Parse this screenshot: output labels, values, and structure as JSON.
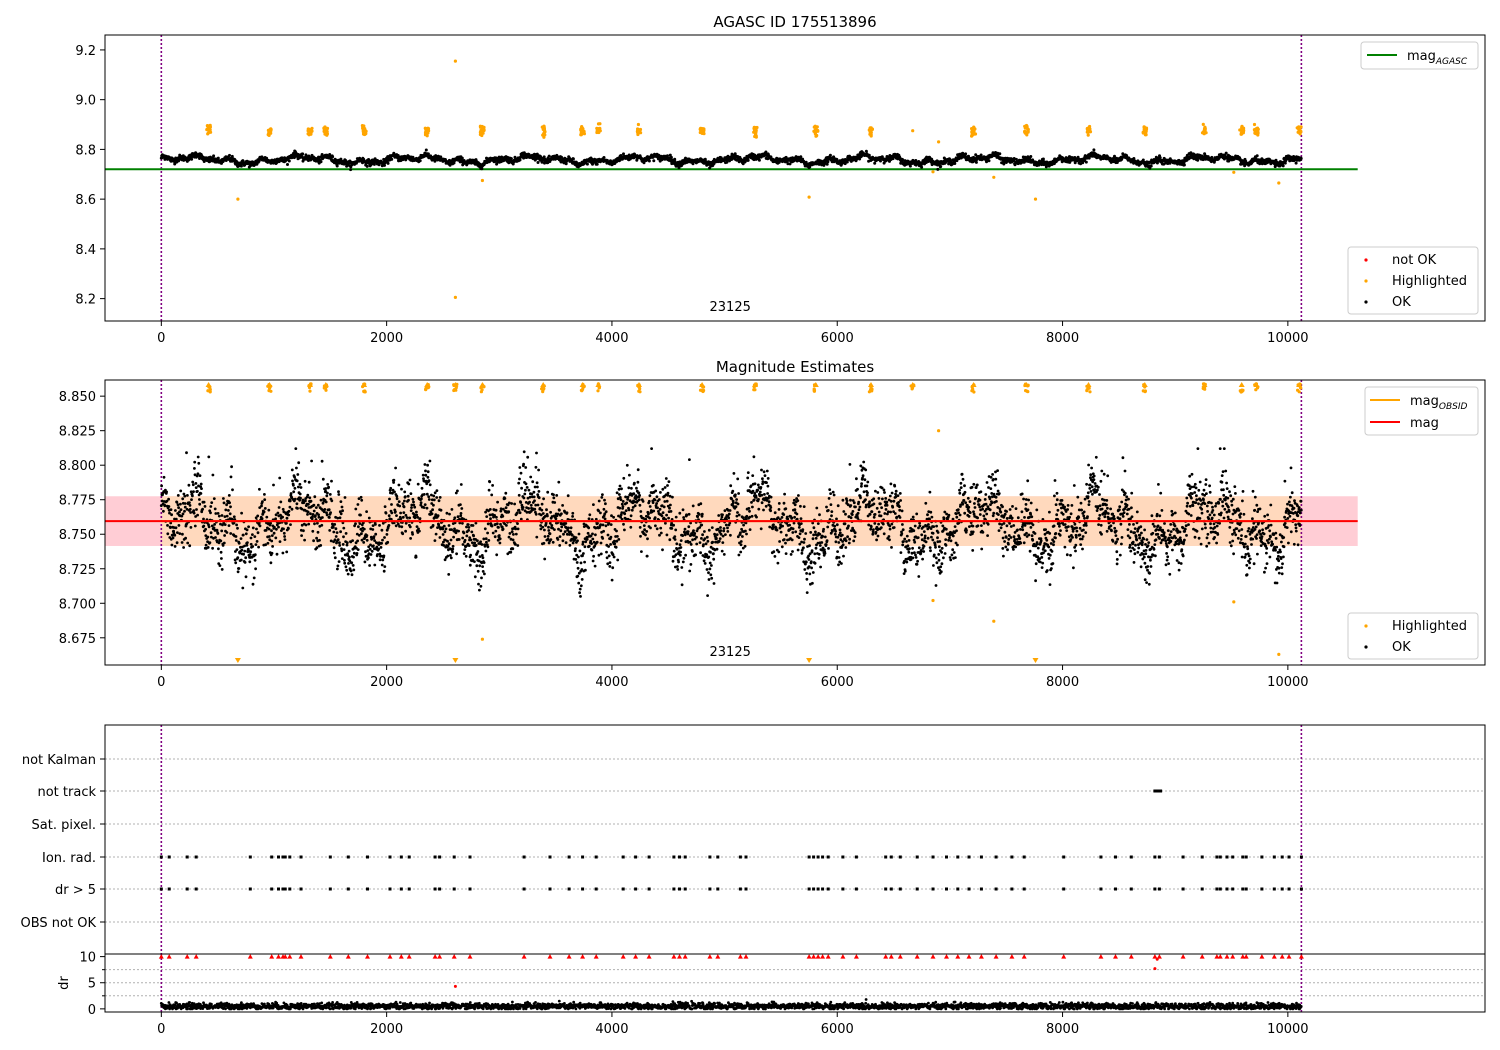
{
  "figure": {
    "background": "#ffffff"
  },
  "chart_data": [
    {
      "type": "scatter",
      "title": "AGASC ID 175513896",
      "xlabel": "",
      "ylabel": "",
      "xlim": [
        -500,
        11750
      ],
      "ylim": [
        8.11,
        9.26
      ],
      "xticks": [
        0,
        2000,
        4000,
        6000,
        8000,
        10000
      ],
      "yticks": [
        8.2,
        8.4,
        8.6,
        8.8,
        9.0,
        9.2
      ],
      "ytick_labels": [
        "8.2",
        "8.4",
        "8.6",
        "8.8",
        "9.0",
        "9.2"
      ],
      "annotation": "23125",
      "annotation_x": 5050,
      "vlines": [
        0,
        10120
      ],
      "vline_color": "#800080",
      "reference_lines": [
        {
          "name": "mag_AGASC",
          "label_main": "mag",
          "label_sub": "AGASC",
          "y": 8.72,
          "x": [
            -500,
            10620
          ],
          "color": "#008000"
        }
      ],
      "series": [
        {
          "name": "not OK",
          "color": "#ff0000",
          "points": "none visible"
        },
        {
          "name": "Highlighted",
          "color": "#ffa500",
          "points": "clusters above the baseline plus outliers"
        },
        {
          "name": "OK",
          "color": "#000000",
          "points": "dense band around 8.76"
        }
      ],
      "highlight_clusters_x": [
        420,
        960,
        1320,
        1460,
        1800,
        2360,
        2850,
        3390,
        3740,
        3880,
        4240,
        4800,
        5270,
        5810,
        6300,
        7210,
        7680,
        8230,
        8730,
        9260,
        9590,
        9720,
        10100
      ],
      "highlight_cluster_level": 8.875,
      "highlight_outliers": [
        [
          680,
          8.6
        ],
        [
          2610,
          9.155
        ],
        [
          2610,
          8.205
        ],
        [
          2850,
          8.675
        ],
        [
          5750,
          8.608
        ],
        [
          6670,
          8.875
        ],
        [
          6850,
          8.71
        ],
        [
          6900,
          8.83
        ],
        [
          7390,
          8.688
        ],
        [
          7760,
          8.6
        ],
        [
          9520,
          8.708
        ],
        [
          9920,
          8.665
        ]
      ],
      "ok_level": 8.758,
      "legend": [
        {
          "label": "mag",
          "sub": "AGASC",
          "kind": "line",
          "color": "#008000",
          "position": "upper-right"
        },
        {
          "label": "not OK",
          "kind": "marker",
          "color": "#ff0000",
          "position": "lower-right"
        },
        {
          "label": "Highlighted",
          "kind": "marker",
          "color": "#ffa500",
          "position": "lower-right"
        },
        {
          "label": "OK",
          "kind": "marker",
          "color": "#000000",
          "position": "lower-right"
        }
      ]
    },
    {
      "type": "scatter",
      "title": "Magnitude Estimates",
      "xlabel": "",
      "ylabel": "",
      "xlim": [
        -500,
        11750
      ],
      "ylim": [
        8.6553,
        8.8617
      ],
      "xticks": [
        0,
        2000,
        4000,
        6000,
        8000,
        10000
      ],
      "yticks": [
        8.675,
        8.7,
        8.725,
        8.75,
        8.775,
        8.8,
        8.825,
        8.85
      ],
      "ytick_labels": [
        "8.675",
        "8.700",
        "8.725",
        "8.750",
        "8.775",
        "8.800",
        "8.825",
        "8.850"
      ],
      "annotation": "23125",
      "annotation_x": 5050,
      "vlines": [
        0,
        10120
      ],
      "vline_color": "#800080",
      "mean_mag": 8.7595,
      "mag_band": [
        8.7415,
        8.7775
      ],
      "band_color": "#ffc0cb",
      "mag_obsid": 8.7595,
      "mag_obsid_band": [
        8.7415,
        8.7775
      ],
      "mag_obsid_band_color": "#ffdab9",
      "mag_obsid_x_end": 10120,
      "mag_x_end": 10620,
      "highlight_top_x": [
        420,
        960,
        1320,
        1460,
        1800,
        2360,
        2610,
        2850,
        3390,
        3740,
        3880,
        4240,
        4800,
        5270,
        5810,
        6300,
        6670,
        7210,
        7680,
        8230,
        8730,
        9260,
        9590,
        9720,
        10100
      ],
      "highlight_bottom_x": [
        680,
        2610,
        5750,
        7760
      ],
      "highlight_inrange": [
        [
          2850,
          8.674
        ],
        [
          6850,
          8.702
        ],
        [
          6900,
          8.825
        ],
        [
          7390,
          8.687
        ],
        [
          9520,
          8.701
        ],
        [
          9920,
          8.663
        ]
      ],
      "ok_points_note": "dense scatter 8.71-8.81",
      "legend": [
        {
          "label": "mag",
          "sub": "OBSID",
          "kind": "line",
          "color": "#ffa500",
          "position": "upper-right"
        },
        {
          "label": "mag",
          "kind": "line",
          "color": "#ff0000",
          "position": "upper-right"
        },
        {
          "label": "Highlighted",
          "kind": "marker",
          "color": "#ffa500",
          "position": "lower-right"
        },
        {
          "label": "OK",
          "kind": "marker",
          "color": "#000000",
          "position": "lower-right"
        }
      ]
    },
    {
      "type": "scatter",
      "title": "",
      "xlabel": "",
      "ylabel": "",
      "xlim": [
        -500,
        11750
      ],
      "xticks": [
        0,
        2000,
        4000,
        6000,
        8000,
        10000
      ],
      "vlines": [
        0,
        10120
      ],
      "vline_color": "#800080",
      "flag_rows": [
        "not Kalman",
        "not track",
        "Sat. pixel.",
        "Ion. rad.",
        "dr > 5",
        "OBS not OK"
      ],
      "flag_events": {
        "not track": [
          8820,
          8830,
          8840,
          8850,
          8860,
          8870
        ],
        "Ion. rad.": [
          0,
          70,
          230,
          310,
          790,
          980,
          1040,
          1080,
          1100,
          1140,
          1240,
          1500,
          1660,
          1830,
          2030,
          2130,
          2200,
          2430,
          2470,
          2600,
          2740,
          3220,
          3450,
          3620,
          3740,
          3860,
          4100,
          4210,
          4330,
          4550,
          4600,
          4650,
          4870,
          4940,
          5140,
          5190,
          5750,
          5790,
          5830,
          5870,
          5920,
          6050,
          6170,
          6430,
          6480,
          6560,
          6710,
          6850,
          6970,
          7070,
          7170,
          7280,
          7410,
          7550,
          7660,
          8010,
          8340,
          8470,
          8610,
          8820,
          8860,
          9070,
          9240,
          9370,
          9400,
          9460,
          9510,
          9600,
          9630,
          9770,
          9880,
          9950,
          10010,
          10120
        ],
        "dr > 5": [
          0,
          70,
          230,
          310,
          790,
          980,
          1040,
          1080,
          1100,
          1140,
          1240,
          1500,
          1660,
          1830,
          2030,
          2130,
          2200,
          2430,
          2470,
          2600,
          2740,
          3220,
          3450,
          3620,
          3740,
          3860,
          4100,
          4210,
          4330,
          4550,
          4600,
          4650,
          4870,
          4940,
          5140,
          5190,
          5750,
          5790,
          5830,
          5870,
          5920,
          6050,
          6170,
          6430,
          6480,
          6560,
          6710,
          6850,
          6970,
          7070,
          7170,
          7280,
          7410,
          7550,
          7660,
          8010,
          8340,
          8470,
          8610,
          8820,
          8860,
          9070,
          9240,
          9370,
          9400,
          9460,
          9510,
          9600,
          9630,
          9770,
          9880,
          9950,
          10010,
          10120
        ]
      },
      "dr_panel": {
        "ylabel": "dr",
        "ylim": [
          -0.6,
          10.5
        ],
        "yticks": [
          0,
          5,
          10
        ],
        "ytick_labels": [
          "0",
          "5",
          "10"
        ],
        "clipped_value": 10,
        "ok_level": 0.5,
        "red_outliers": [
          [
            2610,
            4.3
          ],
          [
            8820,
            7.7
          ],
          [
            8840,
            9.5
          ]
        ],
        "colors": {
          "ok": "#000000",
          "flagged": "#ff0000"
        }
      }
    }
  ]
}
